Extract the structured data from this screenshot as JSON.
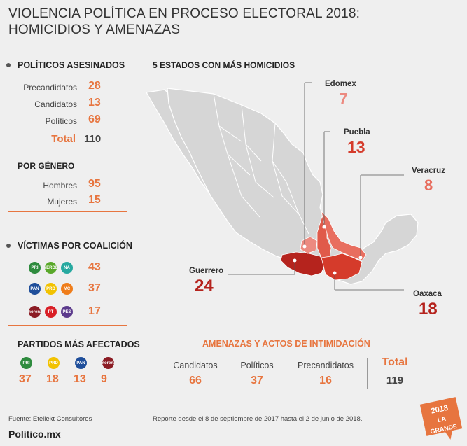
{
  "title_line1": "VIOLENCIA POLÍTICA EN PROCESO ELECTORAL 2018:",
  "title_line2": "HOMICIDIOS Y AMENAZAS",
  "asesinados": {
    "title": "POLÍTICOS ASESINADOS",
    "rows": [
      {
        "label": "Precandidatos",
        "value": "28"
      },
      {
        "label": "Candidatos",
        "value": "13"
      },
      {
        "label": "Políticos",
        "value": "69"
      }
    ],
    "total_label": "Total",
    "total_value": "110"
  },
  "genero": {
    "title": "POR GÉNERO",
    "rows": [
      {
        "label": "Hombres",
        "value": "95"
      },
      {
        "label": "Mujeres",
        "value": "15"
      }
    ]
  },
  "coalicion": {
    "title": "VÍCTIMAS POR COALICIÓN",
    "rows": [
      {
        "value": "43",
        "logos": [
          {
            "icon": "pri-logo",
            "text": "PRI",
            "color": "#2e8b3e"
          },
          {
            "icon": "pvem-logo",
            "text": "VERDE",
            "color": "#5aa82a"
          },
          {
            "icon": "panal-logo",
            "text": "NA",
            "color": "#27a9a0"
          }
        ]
      },
      {
        "value": "37",
        "logos": [
          {
            "icon": "pan-logo",
            "text": "PAN",
            "color": "#1f4e9a"
          },
          {
            "icon": "prd-logo",
            "text": "PRD",
            "color": "#f2c200"
          },
          {
            "icon": "mc-logo",
            "text": "MC",
            "color": "#ef7d1a"
          }
        ]
      },
      {
        "value": "17",
        "logos": [
          {
            "icon": "morena-logo",
            "text": "morena",
            "color": "#8b1c24"
          },
          {
            "icon": "pt-logo",
            "text": "PT",
            "color": "#d91f26"
          },
          {
            "icon": "pes-logo",
            "text": "PES",
            "color": "#5b3a8c"
          }
        ]
      }
    ]
  },
  "partidos": {
    "title": "PARTIDOS MÁS AFECTADOS",
    "items": [
      {
        "value": "37",
        "icon": "pri-logo",
        "text": "PRI",
        "color": "#2e8b3e"
      },
      {
        "value": "18",
        "icon": "prd-logo",
        "text": "PRD",
        "color": "#f2c200"
      },
      {
        "value": "13",
        "icon": "pan-logo",
        "text": "PAN",
        "color": "#1f4e9a"
      },
      {
        "value": "9",
        "icon": "morena-logo",
        "text": "morena",
        "color": "#8b1c24"
      }
    ]
  },
  "mapa": {
    "title": "5 ESTADOS CON MÁS HOMICIDIOS",
    "states": [
      {
        "name": "Edomex",
        "value": "7"
      },
      {
        "name": "Puebla",
        "value": "13"
      },
      {
        "name": "Veracruz",
        "value": "8"
      },
      {
        "name": "Guerrero",
        "value": "24"
      },
      {
        "name": "Oaxaca",
        "value": "18"
      }
    ]
  },
  "amenazas": {
    "title": "AMENAZAS Y ACTOS DE INTIMIDACIÓN",
    "items": [
      {
        "label": "Candidatos",
        "value": "66"
      },
      {
        "label": "Políticos",
        "value": "37"
      },
      {
        "label": "Precandidatos",
        "value": "16"
      }
    ],
    "total_label": "Total",
    "total_value": "119"
  },
  "footer": {
    "source": "Fuente: Etellekt Consultores",
    "report": "Reporte desde el 8 de septiembre de 2017 hasta el 2 de junio de 2018.",
    "brand": "Político.mx",
    "badge_year": "2018",
    "badge_text": "LA GRANDE"
  },
  "colors": {
    "accent": "#e7753f",
    "guerrero": "#b5231d",
    "oaxaca": "#d53b2b",
    "puebla": "#e05a4a",
    "veracruz": "#e86e5f",
    "edomex": "#ec8a80"
  }
}
